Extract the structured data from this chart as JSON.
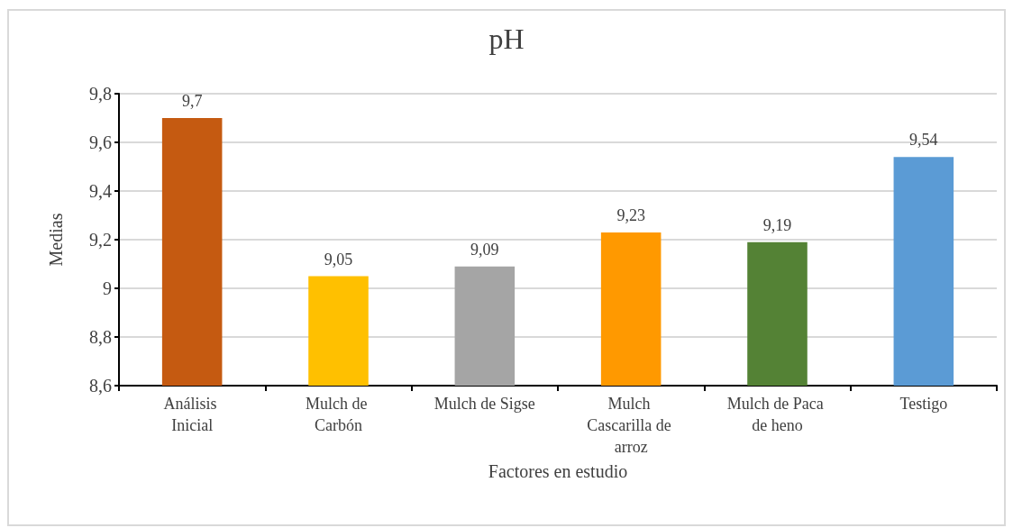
{
  "chart_data": {
    "type": "bar",
    "title": "pH",
    "xlabel": "Factores en estudio",
    "ylabel": "Medias",
    "categories": [
      "Análisis Inicial",
      "Mulch de Carbón",
      "Mulch de Sigse",
      "Mulch Cascarilla de arroz",
      "Mulch de Paca de heno",
      "Testigo"
    ],
    "values": [
      9.7,
      9.05,
      9.09,
      9.23,
      9.19,
      9.54
    ],
    "colors": [
      "#c55a11",
      "#ffc000",
      "#a5a5a5",
      "#ff9900",
      "#548235",
      "#5b9bd5"
    ],
    "value_labels": [
      "9,7",
      "9,05",
      "9,09",
      "9,23",
      "9,19",
      "9,54"
    ],
    "ylim": [
      8.6,
      9.8
    ],
    "yticks": [
      {
        "value": 8.6,
        "label": "8,6"
      },
      {
        "value": 8.8,
        "label": "8,8"
      },
      9,
      {
        "value": 9.2,
        "label": "9,2"
      },
      {
        "value": 9.4,
        "label": "9,4"
      },
      {
        "value": 9.6,
        "label": "9,6"
      },
      {
        "value": 9.8,
        "label": "9,8"
      }
    ],
    "grid": "y"
  }
}
